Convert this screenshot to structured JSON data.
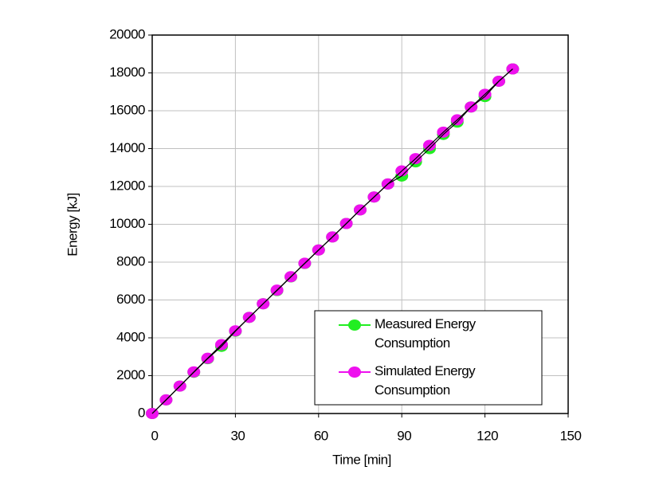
{
  "chart_data": {
    "type": "line",
    "x_label": "Time [min]",
    "y_label": "Energy [kJ]",
    "x": [
      0,
      5,
      10,
      15,
      20,
      25,
      30,
      35,
      40,
      45,
      50,
      55,
      60,
      65,
      70,
      75,
      80,
      85,
      90,
      95,
      100,
      105,
      110,
      115,
      120,
      125,
      130
    ],
    "series": [
      {
        "name": "Measured Energy Consumption",
        "color": "#22ee22",
        "line_color": "#000000",
        "values": [
          0,
          720,
          1450,
          2180,
          2900,
          3550,
          4350,
          5080,
          5800,
          6500,
          7220,
          7930,
          8640,
          9330,
          10040,
          10760,
          11440,
          12130,
          12550,
          13300,
          14000,
          14750,
          15400,
          16200,
          16750,
          17560,
          18210
        ]
      },
      {
        "name": "Simulated Energy Consumption",
        "color": "#ee11ee",
        "line_color": "#000000",
        "values": [
          0,
          720,
          1450,
          2200,
          2920,
          3640,
          4370,
          5080,
          5800,
          6520,
          7230,
          7940,
          8640,
          9330,
          10040,
          10760,
          11440,
          12130,
          12820,
          13470,
          14170,
          14870,
          15520,
          16200,
          16870,
          17560,
          18210
        ]
      }
    ],
    "xlim": [
      0,
      150
    ],
    "xticks": [
      0,
      30,
      60,
      90,
      120,
      150
    ],
    "ylim": [
      0,
      20000
    ],
    "yticks": [
      0,
      2000,
      4000,
      6000,
      8000,
      10000,
      12000,
      14000,
      16000,
      18000,
      20000
    ],
    "grid": true,
    "legend": "lower-right"
  }
}
